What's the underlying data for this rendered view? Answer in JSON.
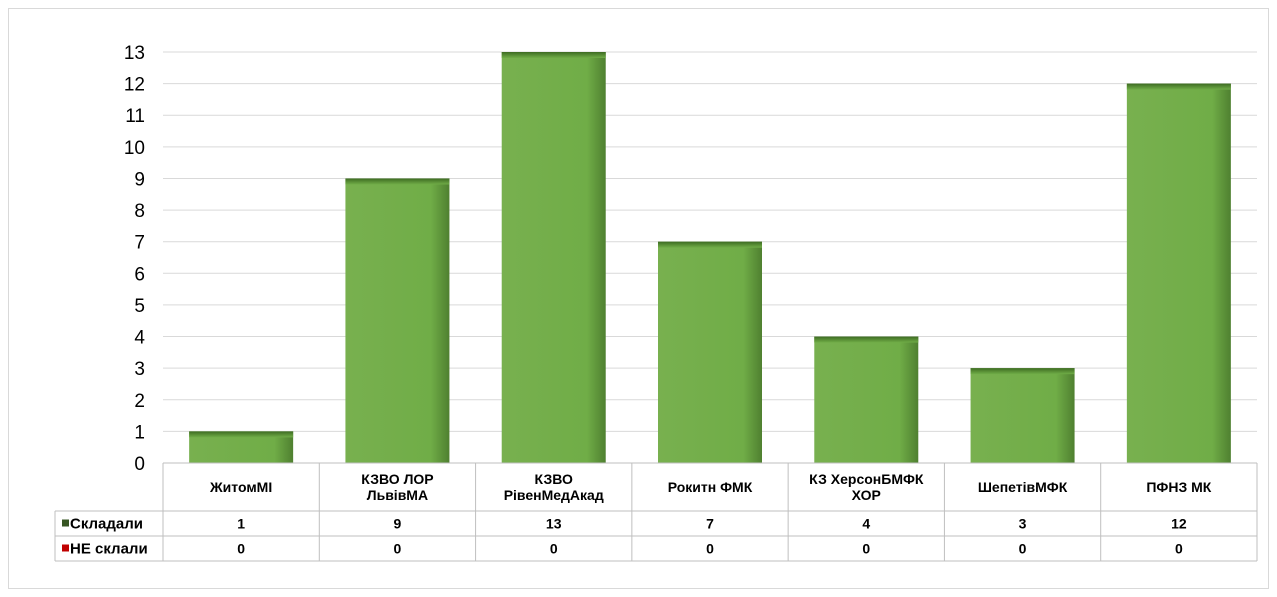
{
  "chart_data": {
    "type": "bar",
    "categories": [
      [
        "ЖитомМІ"
      ],
      [
        "КЗВО ЛОР",
        "ЛьвівМА"
      ],
      [
        "КЗВО",
        "РівенМедАкад"
      ],
      [
        "Рокитн ФМК"
      ],
      [
        "КЗ ХерсонБМФК",
        "ХОР"
      ],
      [
        "ШепетівМФК"
      ],
      [
        "ПФНЗ МК"
      ]
    ],
    "series": [
      {
        "name": "Складали",
        "values": [
          1,
          9,
          13,
          7,
          4,
          3,
          12
        ],
        "color": "#70ad47",
        "marker_color": "#375623"
      },
      {
        "name": "НЕ склали",
        "values": [
          0,
          0,
          0,
          0,
          0,
          0,
          0
        ],
        "color": "#c00000",
        "marker_color": "#c00000"
      }
    ],
    "ylim": [
      0,
      13
    ],
    "yticks": [
      0,
      1,
      2,
      3,
      4,
      5,
      6,
      7,
      8,
      9,
      10,
      11,
      12,
      13
    ],
    "grid": true,
    "data_table": true
  }
}
